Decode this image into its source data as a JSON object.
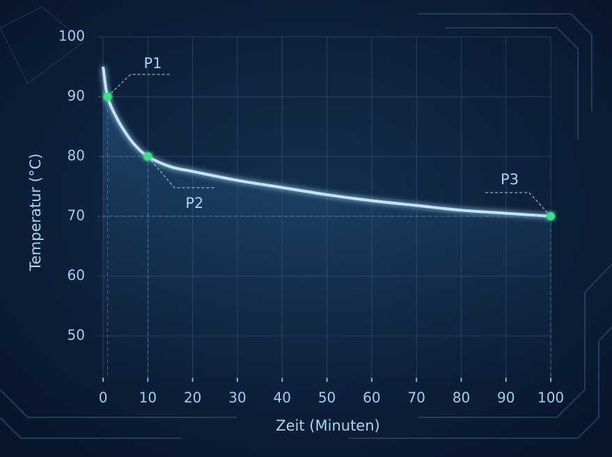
{
  "chart_data": {
    "type": "line",
    "x_label": "Zeit (Minuten)",
    "y_label": "Temperatur (°C)",
    "xlim": [
      -1.1,
      104.5
    ],
    "ylim": [
      43,
      100
    ],
    "xticks": [
      0,
      10,
      20,
      30,
      40,
      50,
      60,
      70,
      80,
      90,
      100
    ],
    "yticks": [
      50,
      60,
      70,
      80,
      90,
      100
    ],
    "grid": true,
    "series": [
      {
        "color": "#bfe6ff",
        "x": [
          0,
          1,
          3,
          5,
          7,
          10,
          15,
          20,
          30,
          40,
          50,
          60,
          70,
          80,
          90,
          100
        ],
        "values": [
          95,
          90,
          86.5,
          84,
          82,
          80,
          78.3,
          77.5,
          76,
          74.8,
          73.6,
          72.6,
          71.8,
          71,
          70.5,
          70
        ]
      }
    ],
    "points": [
      {
        "label": "P1",
        "x": 1,
        "y": 90
      },
      {
        "label": "P2",
        "x": 10,
        "y": 80
      },
      {
        "label": "P3",
        "x": 100,
        "y": 70
      }
    ],
    "point_color": "#3ee08a"
  }
}
